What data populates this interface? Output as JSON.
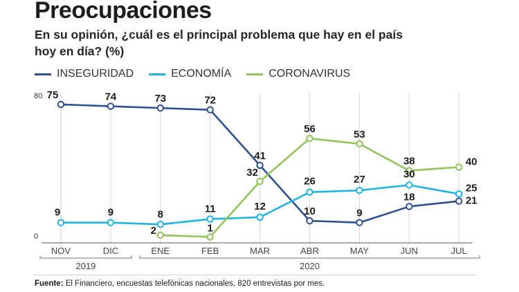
{
  "title": "Preocupaciones",
  "subtitle": "En su opinión, ¿cuál es el principal problema que hay en el país hoy en día? (%)",
  "footer": {
    "label": "Fuente:",
    "text": "El Financiero, encuestas telefónicas nacionales, 820 entrevistas por mes."
  },
  "chart_data": {
    "type": "line",
    "categories": [
      "NOV",
      "DIC",
      "ENE",
      "FEB",
      "MAR",
      "ABR",
      "MAY",
      "JUN",
      "JUL"
    ],
    "year_labels": [
      {
        "label": "2019",
        "from": "NOV",
        "to": "DIC"
      },
      {
        "label": "2020",
        "from": "ENE",
        "to": "JUL"
      }
    ],
    "ylim": [
      0,
      80
    ],
    "yticks": [
      0,
      80
    ],
    "grid": "vertical lines at each month",
    "legend": "top-left",
    "series": [
      {
        "name": "INSEGURIDAD",
        "color": "#2e4f8f",
        "values": [
          75,
          74,
          73,
          72,
          41,
          10,
          9,
          18,
          21
        ]
      },
      {
        "name": "ECONOMÍA",
        "color": "#1fb3e0",
        "values": [
          9,
          9,
          8,
          11,
          12,
          26,
          27,
          30,
          25
        ]
      },
      {
        "name": "CORONAVIRUS",
        "color": "#93c45a",
        "values": [
          null,
          null,
          2,
          1,
          32,
          56,
          53,
          38,
          40
        ]
      }
    ]
  }
}
